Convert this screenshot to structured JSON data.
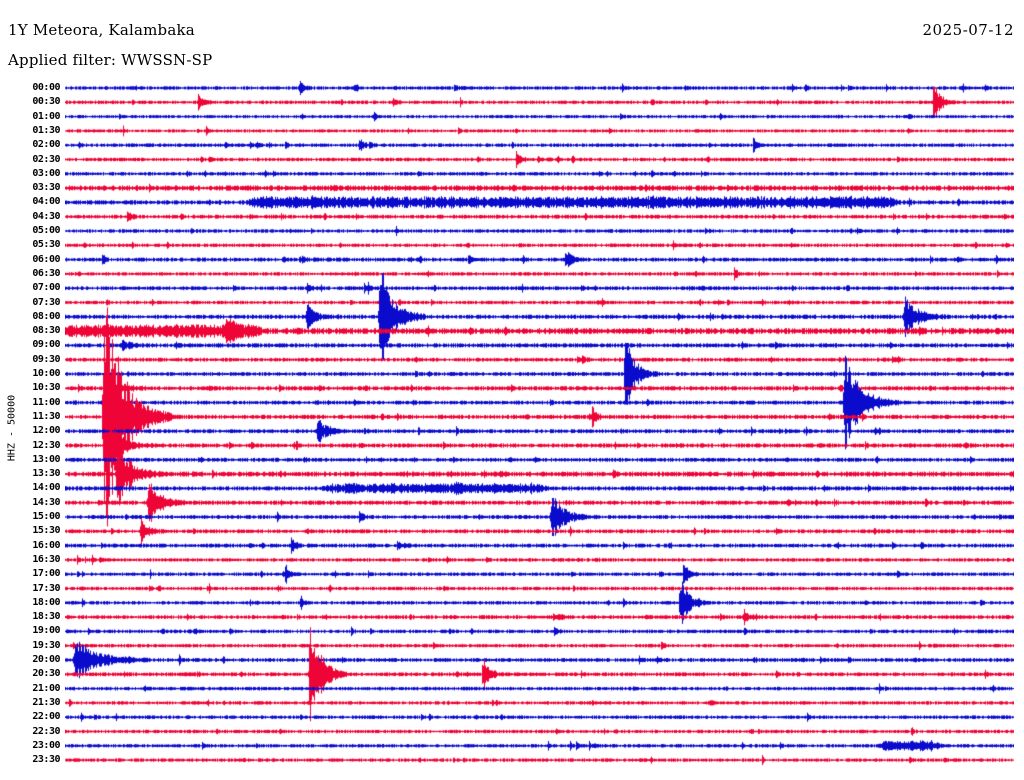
{
  "header": {
    "station": "1Y Meteora, Kalambaka",
    "date": "2025-07-12",
    "filter": "Applied filter: WWSSN-SP"
  },
  "axis": {
    "scale_label": "HHZ - 50000"
  },
  "chart_data": {
    "type": "line",
    "subtype": "helicorder-seismogram",
    "title": "1Y Meteora, Kalambaka",
    "date": "2025-07-12",
    "filter": "WWSSN-SP",
    "ylabel": "HHZ - 50000",
    "row_duration_minutes": 30,
    "rows_start": "00:00",
    "rows_end": "23:30",
    "amplitude_unit": "row-heights",
    "legend": "alternating trace colors per 30-minute row",
    "colors": {
      "blue": "#0b0bcd",
      "red": "#ee0437"
    },
    "rows": [
      {
        "t": "00:00",
        "color": "blue",
        "noise": 0.1,
        "events": [
          {
            "p": 0.247,
            "a": 0.45,
            "d": 0.004
          },
          {
            "p": 0.41,
            "a": 0.28,
            "d": 0.003
          },
          {
            "p": 0.587,
            "a": 0.25,
            "d": 0.003
          }
        ]
      },
      {
        "t": "00:30",
        "color": "red",
        "noise": 0.1,
        "events": [
          {
            "p": 0.14,
            "a": 0.5,
            "d": 0.005
          },
          {
            "p": 0.345,
            "a": 0.35,
            "d": 0.004
          },
          {
            "p": 0.915,
            "a": 1.6,
            "d": 0.006
          }
        ]
      },
      {
        "t": "01:00",
        "color": "blue",
        "noise": 0.09,
        "events": [
          {
            "p": 0.325,
            "a": 0.3,
            "d": 0.003
          }
        ]
      },
      {
        "t": "01:30",
        "color": "red",
        "noise": 0.09,
        "events": []
      },
      {
        "t": "02:00",
        "color": "blue",
        "noise": 0.1,
        "events": [
          {
            "p": 0.31,
            "a": 0.5,
            "d": 0.005
          },
          {
            "p": 0.725,
            "a": 0.6,
            "d": 0.004
          }
        ]
      },
      {
        "t": "02:30",
        "color": "red",
        "noise": 0.1,
        "events": [
          {
            "p": 0.475,
            "a": 0.65,
            "d": 0.004
          }
        ]
      },
      {
        "t": "03:00",
        "color": "blue",
        "noise": 0.1,
        "events": []
      },
      {
        "t": "03:30",
        "color": "red",
        "noise": 0.15,
        "events": []
      },
      {
        "t": "04:00",
        "color": "blue",
        "noise": 0.12,
        "events": [
          {
            "b": [
              0.2,
              0.87
            ],
            "a": 0.3
          }
        ]
      },
      {
        "t": "04:30",
        "color": "red",
        "noise": 0.11,
        "events": [
          {
            "p": 0.065,
            "a": 0.45,
            "d": 0.004
          }
        ]
      },
      {
        "t": "05:00",
        "color": "blue",
        "noise": 0.1,
        "events": []
      },
      {
        "t": "05:30",
        "color": "red",
        "noise": 0.1,
        "events": []
      },
      {
        "t": "06:00",
        "color": "blue",
        "noise": 0.11,
        "events": [
          {
            "p": 0.25,
            "a": 0.3,
            "d": 0.003
          },
          {
            "p": 0.425,
            "a": 0.35,
            "d": 0.003
          },
          {
            "p": 0.527,
            "a": 0.85,
            "d": 0.005
          }
        ]
      },
      {
        "t": "06:30",
        "color": "red",
        "noise": 0.1,
        "events": [
          {
            "p": 0.705,
            "a": 0.5,
            "d": 0.003
          }
        ]
      },
      {
        "t": "07:00",
        "color": "blue",
        "noise": 0.11,
        "events": [
          {
            "p": 0.255,
            "a": 0.4,
            "d": 0.004
          },
          {
            "p": 0.315,
            "a": 0.3,
            "d": 0.003
          }
        ]
      },
      {
        "t": "07:30",
        "color": "red",
        "noise": 0.1,
        "events": []
      },
      {
        "t": "08:00",
        "color": "blue",
        "noise": 0.12,
        "events": [
          {
            "p": 0.255,
            "a": 0.9,
            "d": 0.008
          },
          {
            "p": 0.332,
            "a": 4.2,
            "d": 0.012
          },
          {
            "p": 0.885,
            "a": 1.4,
            "d": 0.012
          }
        ]
      },
      {
        "t": "08:30",
        "color": "red",
        "noise": 0.17,
        "events": [
          {
            "b": [
              0.0,
              0.2
            ],
            "a": 0.3
          },
          {
            "p": 0.17,
            "a": 0.7,
            "d": 0.01
          }
        ]
      },
      {
        "t": "09:00",
        "color": "blue",
        "noise": 0.12,
        "events": [
          {
            "p": 0.06,
            "a": 0.5,
            "d": 0.006
          }
        ]
      },
      {
        "t": "09:30",
        "color": "red",
        "noise": 0.11,
        "events": [
          {
            "p": 0.545,
            "a": 0.4,
            "d": 0.003
          }
        ]
      },
      {
        "t": "10:00",
        "color": "blue",
        "noise": 0.11,
        "events": [
          {
            "p": 0.59,
            "a": 2.6,
            "d": 0.01
          }
        ]
      },
      {
        "t": "10:30",
        "color": "red",
        "noise": 0.12,
        "events": [
          {
            "p": 0.042,
            "a": 1.1,
            "d": 0.012
          }
        ]
      },
      {
        "t": "11:00",
        "color": "blue",
        "noise": 0.11,
        "events": [
          {
            "p": 0.822,
            "a": 3.6,
            "d": 0.015
          }
        ]
      },
      {
        "t": "11:30",
        "color": "red",
        "noise": 0.12,
        "events": [
          {
            "p": 0.042,
            "a": 9.0,
            "d": 0.018
          },
          {
            "p": 0.555,
            "a": 0.8,
            "d": 0.004
          }
        ]
      },
      {
        "t": "12:00",
        "color": "blue",
        "noise": 0.11,
        "events": [
          {
            "p": 0.266,
            "a": 1.15,
            "d": 0.008
          }
        ]
      },
      {
        "t": "12:30",
        "color": "red",
        "noise": 0.12,
        "events": [
          {
            "p": 0.048,
            "a": 1.5,
            "d": 0.012
          }
        ]
      },
      {
        "t": "13:00",
        "color": "blue",
        "noise": 0.11,
        "events": []
      },
      {
        "t": "13:30",
        "color": "red",
        "noise": 0.14,
        "events": [
          {
            "p": 0.055,
            "a": 2.4,
            "d": 0.012
          }
        ]
      },
      {
        "t": "14:00",
        "color": "blue",
        "noise": 0.12,
        "events": [
          {
            "b": [
              0.28,
              0.5
            ],
            "a": 0.25
          },
          {
            "p": 0.41,
            "a": 0.4,
            "d": 0.004
          }
        ]
      },
      {
        "t": "14:30",
        "color": "red",
        "noise": 0.12,
        "events": [
          {
            "p": 0.088,
            "a": 1.8,
            "d": 0.01
          }
        ]
      },
      {
        "t": "15:00",
        "color": "blue",
        "noise": 0.11,
        "events": [
          {
            "p": 0.31,
            "a": 0.45,
            "d": 0.003
          },
          {
            "p": 0.513,
            "a": 1.7,
            "d": 0.012
          }
        ]
      },
      {
        "t": "15:30",
        "color": "red",
        "noise": 0.11,
        "events": [
          {
            "p": 0.08,
            "a": 0.8,
            "d": 0.008
          }
        ]
      },
      {
        "t": "16:00",
        "color": "blue",
        "noise": 0.11,
        "events": [
          {
            "p": 0.238,
            "a": 0.6,
            "d": 0.004
          },
          {
            "p": 0.35,
            "a": 0.5,
            "d": 0.004
          }
        ]
      },
      {
        "t": "16:30",
        "color": "red",
        "noise": 0.1,
        "events": []
      },
      {
        "t": "17:00",
        "color": "blue",
        "noise": 0.1,
        "events": [
          {
            "p": 0.232,
            "a": 0.8,
            "d": 0.004
          },
          {
            "p": 0.651,
            "a": 1.3,
            "d": 0.004
          }
        ]
      },
      {
        "t": "17:30",
        "color": "red",
        "noise": 0.1,
        "events": []
      },
      {
        "t": "18:00",
        "color": "blue",
        "noise": 0.1,
        "events": [
          {
            "p": 0.248,
            "a": 0.55,
            "d": 0.003
          },
          {
            "p": 0.648,
            "a": 1.9,
            "d": 0.008
          }
        ]
      },
      {
        "t": "18:30",
        "color": "red",
        "noise": 0.11,
        "events": [
          {
            "p": 0.52,
            "a": 0.3,
            "d": 0.004
          },
          {
            "p": 0.715,
            "a": 0.6,
            "d": 0.005
          }
        ]
      },
      {
        "t": "19:00",
        "color": "blue",
        "noise": 0.1,
        "events": [
          {
            "p": 0.515,
            "a": 0.35,
            "d": 0.003
          },
          {
            "p": 0.715,
            "a": 0.3,
            "d": 0.003
          }
        ]
      },
      {
        "t": "19:30",
        "color": "red",
        "noise": 0.1,
        "events": [
          {
            "p": 0.628,
            "a": 0.3,
            "d": 0.003
          }
        ]
      },
      {
        "t": "20:00",
        "color": "blue",
        "noise": 0.11,
        "events": [
          {
            "p": 0.012,
            "a": 1.6,
            "d": 0.02
          }
        ]
      },
      {
        "t": "20:30",
        "color": "red",
        "noise": 0.11,
        "events": [
          {
            "p": 0.258,
            "a": 4.4,
            "d": 0.01
          },
          {
            "p": 0.44,
            "a": 1.25,
            "d": 0.006
          }
        ]
      },
      {
        "t": "21:00",
        "color": "blue",
        "noise": 0.1,
        "events": []
      },
      {
        "t": "21:30",
        "color": "red",
        "noise": 0.1,
        "events": []
      },
      {
        "t": "22:00",
        "color": "blue",
        "noise": 0.1,
        "events": []
      },
      {
        "t": "22:30",
        "color": "red",
        "noise": 0.1,
        "events": []
      },
      {
        "t": "23:00",
        "color": "blue",
        "noise": 0.1,
        "events": [
          {
            "b": [
              0.865,
              0.915
            ],
            "a": 0.3
          }
        ]
      },
      {
        "t": "23:30",
        "color": "red",
        "noise": 0.1,
        "events": []
      }
    ]
  }
}
